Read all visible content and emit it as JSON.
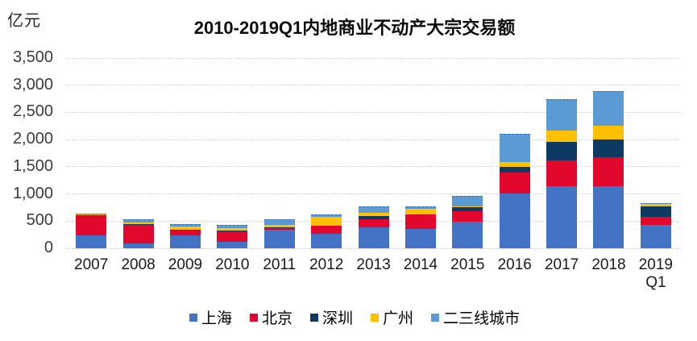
{
  "chart_data": {
    "type": "bar",
    "stacked": true,
    "title": "2010-2019Q1内地商业不动产大宗交易额",
    "unit_label": "亿元",
    "xlabel": "",
    "ylabel": "亿元",
    "ylim": [
      0,
      3500
    ],
    "y_tick_step": 500,
    "y_tick_labels": [
      "0",
      "500",
      "1,000",
      "1,500",
      "2,000",
      "2,500",
      "3,000",
      "3,500"
    ],
    "grid": "dashed horizontal",
    "legend_position": "bottom center",
    "categories": [
      "2007",
      "2008",
      "2009",
      "2010",
      "2011",
      "2012",
      "2013",
      "2014",
      "2015",
      "2016",
      "2017",
      "2018",
      "2019\nQ1"
    ],
    "series": [
      {
        "name": "上海",
        "color": "#4472C4",
        "values": [
          240,
          90,
          240,
          115,
          345,
          260,
          388,
          350,
          492,
          1015,
          1140,
          1135,
          428
        ]
      },
      {
        "name": "北京",
        "color": "#E2082D",
        "values": [
          360,
          340,
          90,
          200,
          28,
          150,
          145,
          272,
          188,
          385,
          480,
          540,
          152
        ]
      },
      {
        "name": "深圳",
        "color": "#0D3A63",
        "values": [
          5,
          10,
          5,
          5,
          18,
          5,
          60,
          8,
          82,
          105,
          345,
          330,
          195
        ]
      },
      {
        "name": "广州",
        "color": "#FFC000",
        "values": [
          20,
          28,
          65,
          55,
          42,
          168,
          62,
          90,
          5,
          78,
          208,
          255,
          38
        ]
      },
      {
        "name": "二三线城市",
        "color": "#5B9BD5",
        "values": [
          18,
          65,
          52,
          55,
          105,
          45,
          110,
          56,
          193,
          518,
          575,
          630,
          12
        ]
      }
    ],
    "top_series_border": "dashed"
  }
}
